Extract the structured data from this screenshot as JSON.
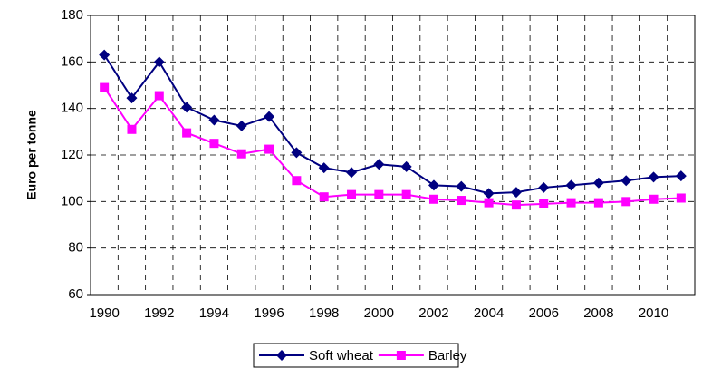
{
  "chart_data": {
    "type": "line",
    "y_label": "Euro per tonne",
    "categories": [
      "1990",
      null,
      "1992",
      null,
      "1994",
      null,
      "1996",
      null,
      "1998",
      null,
      "2000",
      null,
      "2002",
      null,
      "2004",
      null,
      "2006",
      null,
      "2008",
      null,
      "2010",
      null
    ],
    "series": [
      {
        "name": "Soft wheat",
        "color": "#000080",
        "marker": "diamond",
        "values": [
          163,
          144.5,
          160,
          140.5,
          135,
          132.5,
          136.5,
          121,
          114.5,
          112.5,
          116,
          115,
          107,
          106.5,
          103.5,
          104,
          106,
          107,
          108,
          109,
          110.5,
          111
        ]
      },
      {
        "name": "Barley",
        "color": "#ff00ff",
        "marker": "square",
        "values": [
          149,
          131,
          145.5,
          129.5,
          125,
          120.5,
          122.5,
          109,
          102,
          103,
          103,
          103,
          101,
          100.5,
          99.5,
          98.5,
          99,
          99.5,
          99.5,
          100,
          101,
          101.5
        ]
      }
    ],
    "ylim": [
      60,
      180
    ],
    "yticks": [
      60,
      80,
      100,
      120,
      140,
      160,
      180
    ],
    "grid": true,
    "legend": "bottom"
  }
}
